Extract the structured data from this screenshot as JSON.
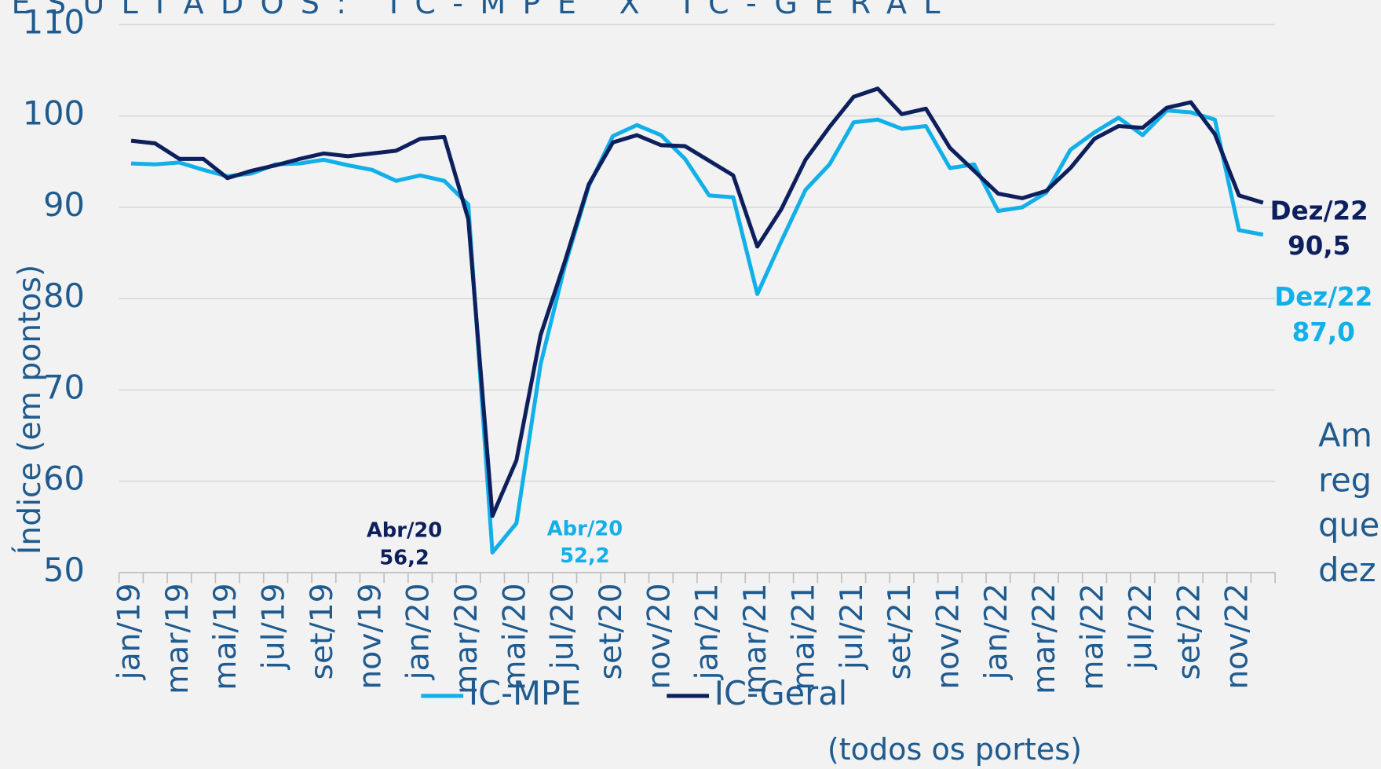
{
  "chart_data": {
    "type": "line",
    "title": "RESULTADOS: IC-MPE X IC-GERAL",
    "y_label": "Índice (em pontos)",
    "legend_note": "(todos os portes)",
    "side_text": [
      "Am",
      "reg",
      "que",
      "dez"
    ],
    "categories": [
      "jan/19",
      null,
      "mar/19",
      null,
      "mai/19",
      null,
      "jul/19",
      null,
      "set/19",
      null,
      "nov/19",
      null,
      "jan/20",
      null,
      "mar/20",
      null,
      "mai/20",
      null,
      "jul/20",
      null,
      "set/20",
      null,
      "nov/20",
      null,
      "jan/21",
      null,
      "mar/21",
      null,
      "mai/21",
      null,
      "jul/21",
      null,
      "set/21",
      null,
      "nov/21",
      null,
      "jan/22",
      null,
      "mar/22",
      null,
      "mai/22",
      null,
      "jul/22",
      null,
      "set/22",
      null,
      "nov/22",
      null
    ],
    "ylim": [
      50,
      110
    ],
    "yticks": [
      50,
      60,
      70,
      80,
      90,
      100,
      110
    ],
    "grid": true,
    "legend": "bottom",
    "series": [
      {
        "name": "IC-MPE",
        "color": "#12b0e8",
        "values": [
          94.8,
          94.7,
          94.9,
          94.1,
          93.4,
          93.7,
          94.7,
          94.8,
          95.2,
          94.6,
          94.1,
          92.9,
          93.5,
          92.9,
          90.3,
          52.2,
          55.4,
          72.8,
          83.5,
          92.3,
          97.8,
          99.0,
          97.9,
          95.3,
          91.3,
          91.1,
          80.5,
          86.3,
          91.9,
          94.7,
          99.3,
          99.6,
          98.6,
          98.9,
          94.3,
          94.7,
          89.6,
          90.0,
          91.6,
          96.3,
          98.2,
          99.8,
          97.9,
          100.6,
          100.4,
          99.6,
          87.5,
          87.0
        ],
        "point_labels": {
          "15": "Abr/20",
          "47": "Dez/22"
        },
        "value_labels": {
          "15": "52,2",
          "47": "87,0"
        }
      },
      {
        "name": "IC-Geral",
        "color": "#0d1f5c",
        "values": [
          97.3,
          97.0,
          95.3,
          95.3,
          93.2,
          94.0,
          94.6,
          95.3,
          95.9,
          95.6,
          95.9,
          96.2,
          97.5,
          97.7,
          88.7,
          56.2,
          62.3,
          76.0,
          84.0,
          92.5,
          97.1,
          97.9,
          96.8,
          96.7,
          95.1,
          93.5,
          85.7,
          89.8,
          95.2,
          98.8,
          102.1,
          103.0,
          100.2,
          100.8,
          96.5,
          94.0,
          91.5,
          91.0,
          91.8,
          94.3,
          97.5,
          98.9,
          98.7,
          100.9,
          101.5,
          98.0,
          91.3,
          90.5
        ],
        "point_labels": {
          "15": "Abr/20",
          "47": "Dez/22"
        },
        "value_labels": {
          "15": "56,2",
          "47": "90,5"
        }
      }
    ]
  }
}
